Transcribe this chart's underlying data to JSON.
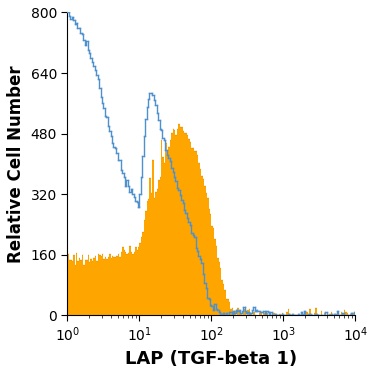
{
  "title": "",
  "xlabel": "LAP (TGF-beta 1)",
  "ylabel": "Relative Cell Number",
  "xlim_log": [
    0,
    4
  ],
  "ylim": [
    0,
    800
  ],
  "yticks": [
    0,
    160,
    320,
    480,
    640,
    800
  ],
  "xlabel_fontsize": 13,
  "ylabel_fontsize": 12,
  "tick_fontsize": 10,
  "orange_color": "#FFA500",
  "orange_edge_color": "#8B6000",
  "blue_color": "#4F91CD",
  "blue_line": {
    "log_x": [
      0.0,
      0.05,
      0.1,
      0.2,
      0.3,
      0.4,
      0.5,
      0.6,
      0.65,
      0.7,
      0.75,
      0.8,
      0.85,
      0.9,
      0.95,
      1.0,
      1.05,
      1.1,
      1.15,
      1.2,
      1.25,
      1.3,
      1.35,
      1.4,
      1.45,
      1.5,
      1.55,
      1.6,
      1.65,
      1.7,
      1.75,
      1.8,
      1.85,
      1.9,
      1.95,
      2.0,
      2.1,
      2.2,
      2.3,
      2.4,
      2.5,
      2.6,
      2.7,
      2.8,
      2.9,
      3.0,
      3.2,
      3.4,
      3.6,
      3.8,
      4.0
    ],
    "y": [
      800,
      790,
      775,
      740,
      700,
      640,
      560,
      480,
      450,
      420,
      390,
      360,
      340,
      320,
      305,
      290,
      420,
      540,
      590,
      570,
      540,
      490,
      455,
      420,
      390,
      360,
      330,
      300,
      270,
      240,
      210,
      180,
      150,
      100,
      50,
      20,
      10,
      5,
      5,
      10,
      18,
      15,
      10,
      5,
      2,
      0,
      0,
      0,
      0,
      0,
      0
    ]
  },
  "orange_histogram": {
    "log_x": [
      0.0,
      0.1,
      0.2,
      0.3,
      0.4,
      0.5,
      0.6,
      0.65,
      0.7,
      0.75,
      0.8,
      0.85,
      0.9,
      0.95,
      1.0,
      1.05,
      1.1,
      1.15,
      1.2,
      1.25,
      1.3,
      1.35,
      1.4,
      1.45,
      1.5,
      1.55,
      1.6,
      1.65,
      1.7,
      1.75,
      1.8,
      1.85,
      1.9,
      1.95,
      2.0,
      2.05,
      2.1,
      2.15,
      2.2,
      2.25,
      2.3,
      2.4,
      2.5,
      2.6,
      2.7,
      2.8,
      2.9,
      3.0,
      3.5,
      4.0
    ],
    "y": [
      150,
      152,
      148,
      150,
      152,
      155,
      158,
      160,
      162,
      165,
      168,
      170,
      168,
      165,
      180,
      230,
      290,
      330,
      350,
      380,
      400,
      430,
      450,
      480,
      490,
      500,
      490,
      480,
      460,
      440,
      420,
      390,
      350,
      310,
      250,
      200,
      150,
      100,
      60,
      30,
      15,
      8,
      5,
      3,
      2,
      1,
      0,
      0,
      0,
      0
    ]
  }
}
